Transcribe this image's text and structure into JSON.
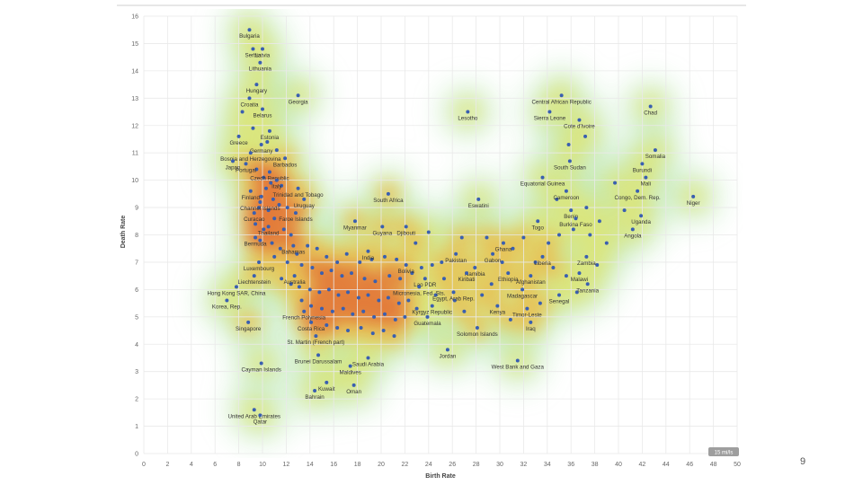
{
  "page": {
    "number": "9"
  },
  "chart_data": {
    "type": "scatter",
    "title": "",
    "xlabel": "Birth Rate",
    "ylabel": "Death Rate",
    "xlim": [
      0,
      50
    ],
    "ylim": [
      0,
      16
    ],
    "x_ticks": [
      "0",
      "2",
      "4",
      "6",
      "8",
      "10",
      "12",
      "14",
      "16",
      "18",
      "20",
      "22",
      "24",
      "26",
      "28",
      "30",
      "32",
      "34",
      "36",
      "38",
      "40",
      "42",
      "44",
      "46",
      "48",
      "50"
    ],
    "y_ticks": [
      "0",
      "1",
      "2",
      "3",
      "4",
      "5",
      "6",
      "7",
      "8",
      "9",
      "10",
      "11",
      "12",
      "13",
      "14",
      "15",
      "16"
    ],
    "grid": true,
    "overlay": "density heatmap (green-yellow-red)",
    "marker_color": "#3a5fb0",
    "scale_badge": "15 mi/ls",
    "points": [
      {
        "label": "Bulgaria",
        "x": 8.9,
        "y": 15.5
      },
      {
        "label": "Serbia",
        "x": 9.2,
        "y": 14.8
      },
      {
        "label": "Latvia",
        "x": 10.0,
        "y": 14.8
      },
      {
        "label": "Lithuania",
        "x": 9.8,
        "y": 14.3
      },
      {
        "label": "Hungary",
        "x": 9.5,
        "y": 13.5
      },
      {
        "label": "Georgia",
        "x": 13.0,
        "y": 13.1
      },
      {
        "label": "Croatia",
        "x": 8.9,
        "y": 13.0
      },
      {
        "label": "Belarus",
        "x": 10.0,
        "y": 12.6
      },
      {
        "label": "Lesotho",
        "x": 27.3,
        "y": 12.5
      },
      {
        "label": "Central African Republic",
        "x": 35.2,
        "y": 13.1
      },
      {
        "label": "Sierra Leone",
        "x": 34.2,
        "y": 12.5
      },
      {
        "label": "Chad",
        "x": 42.7,
        "y": 12.7
      },
      {
        "label": "Cote d'Ivoire",
        "x": 36.7,
        "y": 12.2
      },
      {
        "label": "Estonia",
        "x": 10.6,
        "y": 11.8
      },
      {
        "label": "Greece",
        "x": 8.0,
        "y": 11.6
      },
      {
        "label": "Germany",
        "x": 9.9,
        "y": 11.3
      },
      {
        "label": "Bosnia and Herzegovina",
        "x": 9.0,
        "y": 11.0
      },
      {
        "label": "Japan",
        "x": 7.5,
        "y": 10.7
      },
      {
        "label": "Barbados",
        "x": 11.9,
        "y": 10.8
      },
      {
        "label": "Portugal",
        "x": 8.6,
        "y": 10.6
      },
      {
        "label": "Czech Republic",
        "x": 10.6,
        "y": 10.3
      },
      {
        "label": "Italy",
        "x": 11.2,
        "y": 10.0
      },
      {
        "label": "Finland",
        "x": 9.0,
        "y": 9.6
      },
      {
        "label": "Trinidad and Tobago",
        "x": 13.0,
        "y": 9.7
      },
      {
        "label": "Channel Islands",
        "x": 9.8,
        "y": 9.2
      },
      {
        "label": "Uruguay",
        "x": 13.5,
        "y": 9.3
      },
      {
        "label": "South Africa",
        "x": 20.6,
        "y": 9.5
      },
      {
        "label": "Eswatini",
        "x": 28.2,
        "y": 9.3
      },
      {
        "label": "Curacao",
        "x": 9.3,
        "y": 8.8
      },
      {
        "label": "Faroe Islands",
        "x": 12.8,
        "y": 8.8
      },
      {
        "label": "Thailand",
        "x": 10.5,
        "y": 8.3
      },
      {
        "label": "Myanmar",
        "x": 17.8,
        "y": 8.5
      },
      {
        "label": "Guyana",
        "x": 20.1,
        "y": 8.3
      },
      {
        "label": "Djibouti",
        "x": 22.1,
        "y": 8.3
      },
      {
        "label": "Somalia",
        "x": 43.1,
        "y": 11.1
      },
      {
        "label": "South Sudan",
        "x": 35.9,
        "y": 10.7
      },
      {
        "label": "Burundi",
        "x": 42.0,
        "y": 10.6
      },
      {
        "label": "Mali",
        "x": 42.3,
        "y": 10.1
      },
      {
        "label": "Equatorial Guinea",
        "x": 33.6,
        "y": 10.1
      },
      {
        "label": "Cameroon",
        "x": 35.6,
        "y": 9.6
      },
      {
        "label": "Congo, Dem. Rep.",
        "x": 41.6,
        "y": 9.6
      },
      {
        "label": "Niger",
        "x": 46.3,
        "y": 9.4
      },
      {
        "label": "Benin",
        "x": 36.0,
        "y": 8.9
      },
      {
        "label": "Togo",
        "x": 33.2,
        "y": 8.5
      },
      {
        "label": "Burkina Faso",
        "x": 36.4,
        "y": 8.6
      },
      {
        "label": "Uganda",
        "x": 41.9,
        "y": 8.7
      },
      {
        "label": "Angola",
        "x": 41.2,
        "y": 8.2
      },
      {
        "label": "Bermuda",
        "x": 9.4,
        "y": 7.9
      },
      {
        "label": "Bahamas",
        "x": 12.6,
        "y": 7.6
      },
      {
        "label": "Luxembourg",
        "x": 9.7,
        "y": 7.0
      },
      {
        "label": "India",
        "x": 18.9,
        "y": 7.4
      },
      {
        "label": "Ghana",
        "x": 30.3,
        "y": 7.7
      },
      {
        "label": "Pakistan",
        "x": 26.3,
        "y": 7.3
      },
      {
        "label": "Gabon",
        "x": 29.4,
        "y": 7.3
      },
      {
        "label": "Liberia",
        "x": 33.6,
        "y": 7.2
      },
      {
        "label": "Zambia",
        "x": 37.3,
        "y": 7.2
      },
      {
        "label": "Bolivia",
        "x": 22.1,
        "y": 6.9
      },
      {
        "label": "Namibia",
        "x": 27.9,
        "y": 6.8
      },
      {
        "label": "Afghanistan",
        "x": 32.6,
        "y": 6.5
      },
      {
        "label": "Malawi",
        "x": 36.7,
        "y": 6.6
      },
      {
        "label": "Liechtenstein",
        "x": 9.3,
        "y": 6.5
      },
      {
        "label": "Lao PDR",
        "x": 23.7,
        "y": 6.4
      },
      {
        "label": "Kiribati",
        "x": 27.2,
        "y": 6.6
      },
      {
        "label": "Ethiopia",
        "x": 30.7,
        "y": 6.6
      },
      {
        "label": "Tanzania",
        "x": 37.4,
        "y": 6.2
      },
      {
        "label": "Hong Kong SAR, China",
        "x": 7.8,
        "y": 6.1
      },
      {
        "label": "Australia",
        "x": 12.7,
        "y": 6.5
      },
      {
        "label": "Micronesia, Fed. Sts.",
        "x": 23.2,
        "y": 6.1
      },
      {
        "label": "Egypt, Arab Rep.",
        "x": 26.1,
        "y": 5.9
      },
      {
        "label": "Madagascar",
        "x": 31.9,
        "y": 6.0
      },
      {
        "label": "Senegal",
        "x": 35.0,
        "y": 5.8
      },
      {
        "label": "Korea, Rep.",
        "x": 7.0,
        "y": 5.6
      },
      {
        "label": "French Polynesia",
        "x": 13.5,
        "y": 5.2
      },
      {
        "label": "Kyrgyz Republic",
        "x": 24.3,
        "y": 5.4
      },
      {
        "label": "Kenya",
        "x": 29.8,
        "y": 5.4
      },
      {
        "label": "Timor-Leste",
        "x": 32.3,
        "y": 5.3
      },
      {
        "label": "Guatemala",
        "x": 23.9,
        "y": 5.0
      },
      {
        "label": "Singapore",
        "x": 8.8,
        "y": 4.8
      },
      {
        "label": "Costa Rica",
        "x": 14.1,
        "y": 4.8
      },
      {
        "label": "Iraq",
        "x": 32.6,
        "y": 4.8
      },
      {
        "label": "Solomon Islands",
        "x": 28.1,
        "y": 4.6
      },
      {
        "label": "St. Martin (French part)",
        "x": 14.5,
        "y": 4.3
      },
      {
        "label": "Brunei Darussalam",
        "x": 14.7,
        "y": 3.6
      },
      {
        "label": "Saudi Arabia",
        "x": 18.9,
        "y": 3.5
      },
      {
        "label": "Jordan",
        "x": 25.6,
        "y": 3.8
      },
      {
        "label": "Cayman Islands",
        "x": 9.9,
        "y": 3.3
      },
      {
        "label": "West Bank and Gaza",
        "x": 31.5,
        "y": 3.4
      },
      {
        "label": "Maldives",
        "x": 17.4,
        "y": 3.2
      },
      {
        "label": "Kuwait",
        "x": 15.4,
        "y": 2.6
      },
      {
        "label": "Oman",
        "x": 17.7,
        "y": 2.5
      },
      {
        "label": "Bahrain",
        "x": 14.4,
        "y": 2.3
      },
      {
        "label": "United Arab Emirates",
        "x": 9.3,
        "y": 1.6
      },
      {
        "label": "Qatar",
        "x": 9.8,
        "y": 1.4
      }
    ],
    "unlabeled_points": [
      [
        8.3,
        12.5
      ],
      [
        9.2,
        11.9
      ],
      [
        10.4,
        11.4
      ],
      [
        11.2,
        11.1
      ],
      [
        9.5,
        10.4
      ],
      [
        10.1,
        10.1
      ],
      [
        10.7,
        9.9
      ],
      [
        11.6,
        9.8
      ],
      [
        10.3,
        9.7
      ],
      [
        9.9,
        9.4
      ],
      [
        10.9,
        9.3
      ],
      [
        11.4,
        9.1
      ],
      [
        12.1,
        9.0
      ],
      [
        9.7,
        9.0
      ],
      [
        10.5,
        8.9
      ],
      [
        11.0,
        8.6
      ],
      [
        9.4,
        8.4
      ],
      [
        10.1,
        8.2
      ],
      [
        11.8,
        8.2
      ],
      [
        12.4,
        8.0
      ],
      [
        9.8,
        7.8
      ],
      [
        10.8,
        7.7
      ],
      [
        11.5,
        7.5
      ],
      [
        12.9,
        7.3
      ],
      [
        13.8,
        7.6
      ],
      [
        14.6,
        7.5
      ],
      [
        15.4,
        7.2
      ],
      [
        16.3,
        7.0
      ],
      [
        17.1,
        7.3
      ],
      [
        18.2,
        7.0
      ],
      [
        19.2,
        7.1
      ],
      [
        20.3,
        7.2
      ],
      [
        21.3,
        7.1
      ],
      [
        11.0,
        7.2
      ],
      [
        12.1,
        7.0
      ],
      [
        13.3,
        6.9
      ],
      [
        14.2,
        6.8
      ],
      [
        15.0,
        6.6
      ],
      [
        15.8,
        6.7
      ],
      [
        16.7,
        6.5
      ],
      [
        17.5,
        6.6
      ],
      [
        18.6,
        6.4
      ],
      [
        19.5,
        6.3
      ],
      [
        20.7,
        6.5
      ],
      [
        21.6,
        6.4
      ],
      [
        22.6,
        6.6
      ],
      [
        23.4,
        6.8
      ],
      [
        24.3,
        6.9
      ],
      [
        25.1,
        7.0
      ],
      [
        11.6,
        6.4
      ],
      [
        12.4,
        6.2
      ],
      [
        13.1,
        6.1
      ],
      [
        14.0,
        6.0
      ],
      [
        14.8,
        5.9
      ],
      [
        15.6,
        6.0
      ],
      [
        16.4,
        5.8
      ],
      [
        17.2,
        5.9
      ],
      [
        18.1,
        5.7
      ],
      [
        18.9,
        5.8
      ],
      [
        19.8,
        5.6
      ],
      [
        20.6,
        5.7
      ],
      [
        21.5,
        5.5
      ],
      [
        22.3,
        5.6
      ],
      [
        23.0,
        5.3
      ],
      [
        13.3,
        5.6
      ],
      [
        14.1,
        5.4
      ],
      [
        15.0,
        5.3
      ],
      [
        15.9,
        5.2
      ],
      [
        16.8,
        5.3
      ],
      [
        17.6,
        5.1
      ],
      [
        18.5,
        5.2
      ],
      [
        19.4,
        5.0
      ],
      [
        20.3,
        5.1
      ],
      [
        21.2,
        4.9
      ],
      [
        22.0,
        5.0
      ],
      [
        15.4,
        4.7
      ],
      [
        16.3,
        4.6
      ],
      [
        17.2,
        4.5
      ],
      [
        18.3,
        4.6
      ],
      [
        19.3,
        4.4
      ],
      [
        20.2,
        4.5
      ],
      [
        21.1,
        4.3
      ],
      [
        26.2,
        5.6
      ],
      [
        27.0,
        5.2
      ],
      [
        28.5,
        5.8
      ],
      [
        29.3,
        6.2
      ],
      [
        30.2,
        7.0
      ],
      [
        31.1,
        7.5
      ],
      [
        32.0,
        7.9
      ],
      [
        33.0,
        7.0
      ],
      [
        34.1,
        7.7
      ],
      [
        35.0,
        8.0
      ],
      [
        36.2,
        8.2
      ],
      [
        37.6,
        8.0
      ],
      [
        38.4,
        8.5
      ],
      [
        34.5,
        6.8
      ],
      [
        35.6,
        6.5
      ],
      [
        36.5,
        5.9
      ],
      [
        33.4,
        5.5
      ],
      [
        30.9,
        4.9
      ],
      [
        34.8,
        9.3
      ],
      [
        37.3,
        9.0
      ],
      [
        39.0,
        7.7
      ],
      [
        38.2,
        6.9
      ],
      [
        39.7,
        9.9
      ],
      [
        40.5,
        8.9
      ],
      [
        37.2,
        11.6
      ],
      [
        35.8,
        11.3
      ],
      [
        24.6,
        5.8
      ],
      [
        25.3,
        6.4
      ],
      [
        26.8,
        7.9
      ],
      [
        28.9,
        7.9
      ],
      [
        24.0,
        8.1
      ],
      [
        22.9,
        7.7
      ]
    ]
  }
}
